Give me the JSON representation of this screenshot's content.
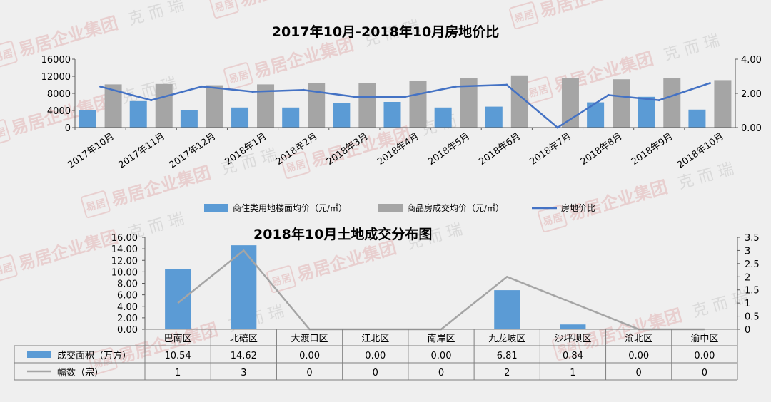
{
  "chart_data": [
    {
      "type": "bar",
      "title": "2017年10月-2018年10月房地价比",
      "categories": [
        "2017年10月",
        "2017年11月",
        "2017年12月",
        "2018年1月",
        "2018年2月",
        "2018年3月",
        "2018年4月",
        "2018年5月",
        "2018年6月",
        "2018年7月",
        "2018年8月",
        "2018年9月",
        "2018年10月"
      ],
      "series": [
        {
          "name": "商住类用地楼面均价（元/㎡）",
          "type": "bar",
          "axis": "left",
          "color": "#5b9bd5",
          "values": [
            4100,
            6200,
            4000,
            4700,
            4700,
            5800,
            6000,
            4700,
            4900,
            0,
            5900,
            7200,
            4200
          ]
        },
        {
          "name": "商品房成交均价（元/㎡）",
          "type": "bar",
          "axis": "left",
          "color": "#a5a5a5",
          "values": [
            10100,
            10200,
            9900,
            10100,
            10400,
            10400,
            11000,
            11500,
            12200,
            11500,
            11300,
            11600,
            11100
          ]
        },
        {
          "name": "房地价比",
          "type": "line",
          "axis": "right",
          "color": "#4472c4",
          "values": [
            2.4,
            1.6,
            2.4,
            2.1,
            2.2,
            1.8,
            1.8,
            2.4,
            2.5,
            0,
            1.9,
            1.6,
            2.6
          ]
        }
      ],
      "ylim": [
        0,
        16000
      ],
      "y_ticks": [
        "0",
        "4000",
        "8000",
        "12000",
        "16000"
      ],
      "y2lim": [
        0,
        4
      ],
      "y2_ticks": [
        "0.00",
        "2.00",
        "4.00"
      ],
      "legend_position": "bottom"
    },
    {
      "type": "bar",
      "title": "2018年10月土地成交分布图",
      "categories": [
        "巴南区",
        "北碚区",
        "大渡口区",
        "江北区",
        "南岸区",
        "九龙坡区",
        "沙坪坝区",
        "渝北区",
        "渝中区"
      ],
      "series": [
        {
          "name": "成交面积（万方）",
          "type": "bar",
          "axis": "left",
          "color": "#5b9bd5",
          "values": [
            10.54,
            14.62,
            0.0,
            0.0,
            0.0,
            6.81,
            0.84,
            0.0,
            0.0
          ],
          "labels": [
            "10.54",
            "14.62",
            "0.00",
            "0.00",
            "0.00",
            "6.81",
            "0.84",
            "0.00",
            "0.00"
          ]
        },
        {
          "name": "幅数（宗）",
          "type": "line",
          "axis": "right",
          "color": "#a5a5a5",
          "values": [
            1,
            3,
            0,
            0,
            0,
            2,
            1,
            0,
            0
          ],
          "labels": [
            "1",
            "3",
            "0",
            "0",
            "0",
            "2",
            "1",
            "0",
            "0"
          ]
        }
      ],
      "ylim": [
        0,
        16
      ],
      "y_ticks": [
        "0.00",
        "2.00",
        "4.00",
        "6.00",
        "8.00",
        "10.00",
        "12.00",
        "14.00",
        "16.00"
      ],
      "y2lim": [
        0,
        3.5
      ],
      "y2_ticks": [
        "0",
        "0.5",
        "1",
        "1.5",
        "2",
        "2.5",
        "3",
        "3.5"
      ],
      "legend_position": "data-table"
    }
  ],
  "watermark": {
    "brand": "易居企业集团",
    "sub": "克 而 瑞",
    "logo": "易居"
  }
}
